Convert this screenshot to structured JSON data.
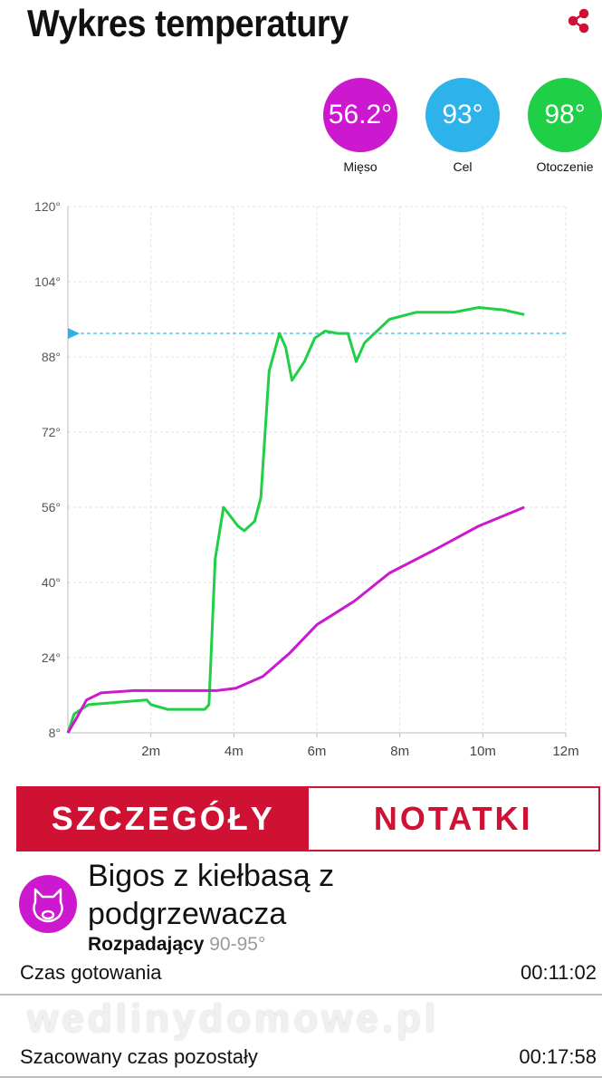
{
  "header": {
    "title": "Wykres temperatury",
    "share_icon": "share-icon"
  },
  "probes": [
    {
      "value": "56.2°",
      "label": "Mięso",
      "color": "#cc18cf"
    },
    {
      "value": "93°",
      "label": "Cel",
      "color": "#2db2ea"
    },
    {
      "value": "98°",
      "label": "Otoczenie",
      "color": "#1fcf46"
    }
  ],
  "chart_data": {
    "type": "line",
    "title": "",
    "xlabel": "",
    "ylabel": "",
    "xlim": [
      0,
      12
    ],
    "ylim": [
      8,
      120
    ],
    "x_ticks": [
      "2m",
      "4m",
      "6m",
      "8m",
      "10m",
      "12m"
    ],
    "x_tick_values": [
      2,
      4,
      6,
      8,
      10,
      12
    ],
    "y_ticks": [
      "8°",
      "24°",
      "40°",
      "56°",
      "72°",
      "88°",
      "104°",
      "120°"
    ],
    "y_tick_values": [
      8,
      24,
      40,
      56,
      72,
      88,
      104,
      120
    ],
    "grid": true,
    "target": {
      "value": 93,
      "color": "#2db2ea"
    },
    "series": [
      {
        "name": "Otoczenie",
        "color": "#1fcf46",
        "points": [
          [
            0,
            8
          ],
          [
            0.15,
            12
          ],
          [
            0.5,
            14
          ],
          [
            1.2,
            14.5
          ],
          [
            1.9,
            15
          ],
          [
            2.0,
            14
          ],
          [
            2.4,
            13
          ],
          [
            3.3,
            13
          ],
          [
            3.4,
            14
          ],
          [
            3.55,
            45
          ],
          [
            3.75,
            56
          ],
          [
            4.1,
            52
          ],
          [
            4.25,
            51
          ],
          [
            4.5,
            53
          ],
          [
            4.65,
            58
          ],
          [
            4.85,
            85
          ],
          [
            5.1,
            93
          ],
          [
            5.25,
            90
          ],
          [
            5.4,
            83
          ],
          [
            5.7,
            87
          ],
          [
            5.95,
            92
          ],
          [
            6.2,
            93.5
          ],
          [
            6.5,
            93
          ],
          [
            6.75,
            93
          ],
          [
            6.95,
            87
          ],
          [
            7.15,
            91
          ],
          [
            7.75,
            96
          ],
          [
            8.4,
            97.5
          ],
          [
            9.3,
            97.5
          ],
          [
            9.9,
            98.5
          ],
          [
            10.5,
            98
          ],
          [
            11.0,
            97
          ]
        ]
      },
      {
        "name": "Mięso",
        "color": "#cc18cf",
        "points": [
          [
            0,
            8
          ],
          [
            0.2,
            11
          ],
          [
            0.45,
            15
          ],
          [
            0.8,
            16.5
          ],
          [
            1.6,
            17
          ],
          [
            3.6,
            17
          ],
          [
            4.05,
            17.5
          ],
          [
            4.7,
            20
          ],
          [
            5.35,
            25
          ],
          [
            6.0,
            31
          ],
          [
            6.9,
            36
          ],
          [
            7.75,
            42
          ],
          [
            8.85,
            47
          ],
          [
            9.9,
            52
          ],
          [
            11.0,
            56
          ]
        ]
      }
    ]
  },
  "tabs": [
    {
      "label": "SZCZEGÓŁY",
      "active": true
    },
    {
      "label": "NOTATKI",
      "active": false
    }
  ],
  "recipe": {
    "name": "Bigos z kiełbasą z podgrzewacza",
    "doneness": "Rozpadający",
    "range": "90-95°",
    "icon": "pig-icon"
  },
  "rows": [
    {
      "label": "Czas gotowania",
      "value": "00:11:02"
    },
    {
      "label": "Szacowany czas pozostały",
      "value": "00:17:58"
    }
  ],
  "watermark": "wedlinydomowe.pl"
}
